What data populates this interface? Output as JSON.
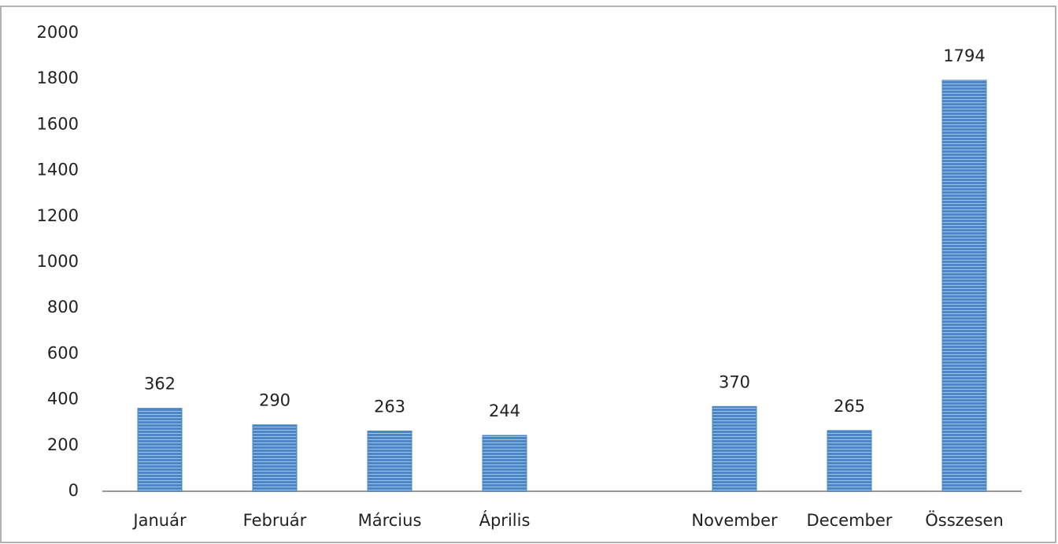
{
  "chart_data": {
    "type": "bar",
    "categories": [
      "Január",
      "Február",
      "Március",
      "Április",
      null,
      "November",
      "December",
      "Összesen"
    ],
    "values": [
      362,
      290,
      263,
      244,
      null,
      370,
      265,
      1794
    ],
    "color": "#4a86c5",
    "ylim": [
      0,
      2000
    ],
    "yticks": [
      0,
      200,
      400,
      600,
      800,
      1000,
      1200,
      1400,
      1600,
      1800,
      2000
    ],
    "grid": false,
    "data_labels": true
  }
}
